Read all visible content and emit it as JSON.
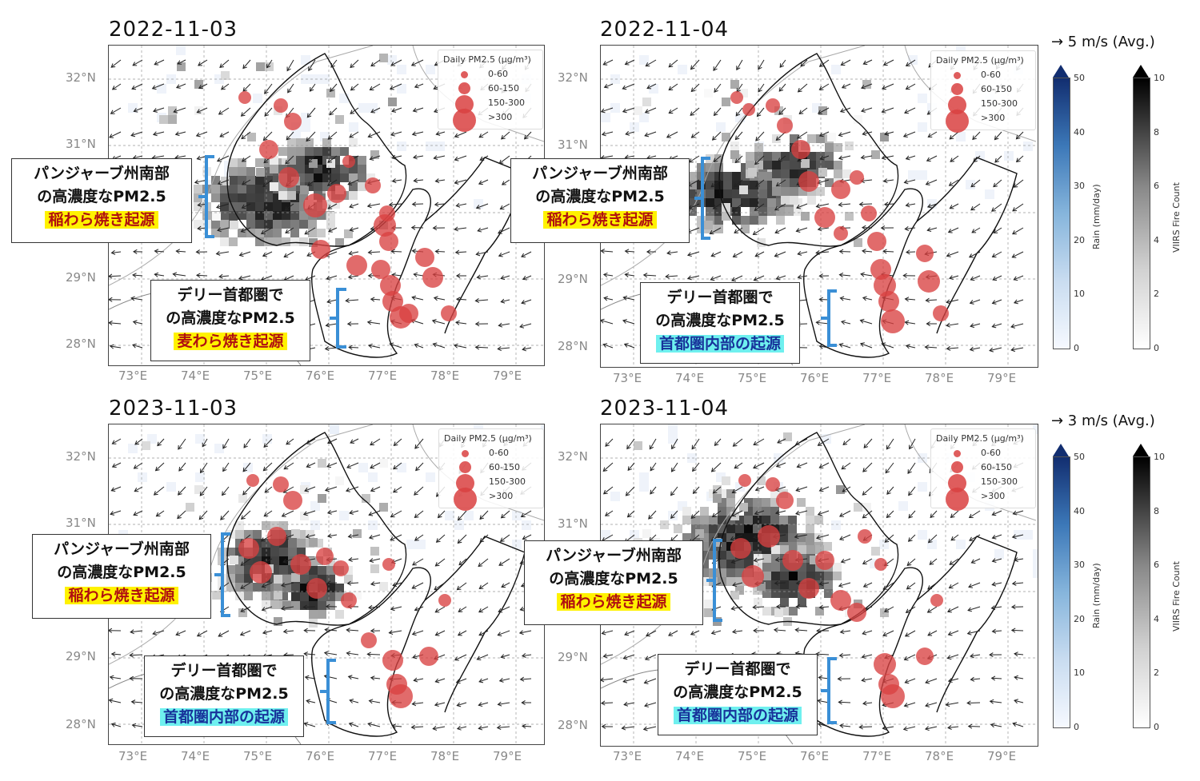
{
  "panels": [
    {
      "date": "2022-11-03",
      "lat_labels": [
        "32°N",
        "31°N",
        "29°N",
        "28°N"
      ],
      "lon_labels": [
        "73°E",
        "74°E",
        "75°E",
        "76°E",
        "77°E",
        "78°E",
        "79°E"
      ],
      "legend": {
        "title": "Daily PM2.5 (μg/m³)",
        "items": [
          "0-60",
          "60-150",
          "150-300",
          ">300"
        ]
      },
      "callout_punjab": {
        "line1": "パンジャーブ州南部",
        "line2": "の高濃度なPM2.5",
        "line3": "稲わら焼き起源",
        "style": "yellow"
      },
      "callout_delhi": {
        "line1": "デリー首都圏で",
        "line2": "の高濃度なPM2.5",
        "line3": "麦わら焼き起源",
        "style": "yellow"
      }
    },
    {
      "date": "2022-11-04",
      "lat_labels": [
        "32°N",
        "31°N",
        "29°N",
        "28°N"
      ],
      "lon_labels": [
        "73°E",
        "74°E",
        "75°E",
        "76°E",
        "77°E",
        "78°E",
        "79°E"
      ],
      "legend": {
        "title": "Daily PM2.5 (μg/m³)",
        "items": [
          "0-60",
          "60-150",
          "150-300",
          ">300"
        ]
      },
      "callout_punjab": {
        "line1": "パンジャーブ州南部",
        "line2": "の高濃度なPM2.5",
        "line3": "稲わら焼き起源",
        "style": "yellow"
      },
      "callout_delhi": {
        "line1": "デリー首都圏で",
        "line2": "の高濃度なPM2.5",
        "line3": "首都圏内部の起源",
        "style": "cyan"
      }
    },
    {
      "date": "2023-11-03",
      "lat_labels": [
        "32°N",
        "31°N",
        "29°N",
        "28°N"
      ],
      "lon_labels": [
        "73°E",
        "74°E",
        "75°E",
        "76°E",
        "77°E",
        "78°E",
        "79°E"
      ],
      "legend": {
        "title": "Daily PM2.5 (μg/m³)",
        "items": [
          "0-60",
          "60-150",
          "150-300",
          ">300"
        ]
      },
      "callout_punjab": {
        "line1": "パンジャーブ州南部",
        "line2": "の高濃度なPM2.5",
        "line3": "稲わら焼き起源",
        "style": "yellow"
      },
      "callout_delhi": {
        "line1": "デリー首都圏で",
        "line2": "の高濃度なPM2.5",
        "line3": "首都圏内部の起源",
        "style": "cyan"
      }
    },
    {
      "date": "2023-11-04",
      "lat_labels": [
        "32°N",
        "31°N",
        "29°N",
        "28°N"
      ],
      "lon_labels": [
        "73°E",
        "74°E",
        "75°E",
        "76°E",
        "77°E",
        "78°E",
        "79°E"
      ],
      "legend": {
        "title": "Daily PM2.5 (μg/m³)",
        "items": [
          "0-60",
          "60-150",
          "150-300",
          ">300"
        ]
      },
      "callout_punjab": {
        "line1": "パンジャーブ州南部",
        "line2": "の高濃度なPM2.5",
        "line3": "稲わら焼き起源",
        "style": "yellow"
      },
      "callout_delhi": {
        "line1": "デリー首都圏で",
        "line2": "の高濃度なPM2.5",
        "line3": "首都圏内部の起源",
        "style": "cyan"
      }
    }
  ],
  "wind_ref": [
    {
      "label": "→ 5 m/s (Avg.)"
    },
    {
      "label": "→ 3 m/s (Avg.)"
    }
  ],
  "colorbars": {
    "rain": {
      "label": "Rain (mm/day)",
      "ticks": [
        "50",
        "40",
        "30",
        "20",
        "10",
        "0"
      ]
    },
    "fire": {
      "label": "VIIRS Fire Count",
      "ticks": [
        "10",
        "8",
        "6",
        "4",
        "2",
        "0"
      ]
    }
  },
  "colors": {
    "pm25": "#d94141",
    "rain_max": "#122e70",
    "fire_max": "#000000",
    "highlight_yellow": "#fff200",
    "highlight_cyan": "#6ff0ef",
    "bracket": "#3a8fd6"
  }
}
